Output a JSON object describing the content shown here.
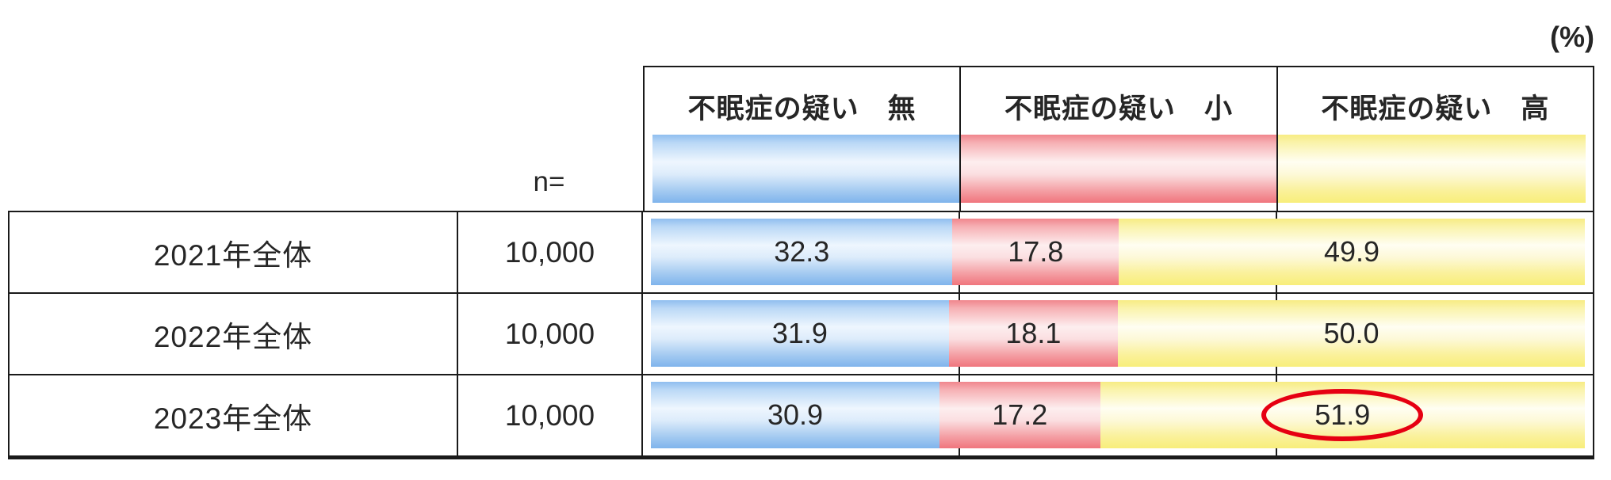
{
  "unit_label": "(%)",
  "n_label": "n=",
  "columns": [
    {
      "title": "不眠症の疑い　無",
      "color": "#a9cdf1"
    },
    {
      "title": "不眠症の疑い　小",
      "color": "#f29ba1"
    },
    {
      "title": "不眠症の疑い　高",
      "color": "#faf094"
    }
  ],
  "rows": [
    {
      "label": "2021年全体",
      "n": "10,000",
      "values": [
        "32.3",
        "17.8",
        "49.9"
      ]
    },
    {
      "label": "2022年全体",
      "n": "10,000",
      "values": [
        "31.9",
        "18.1",
        "50.0"
      ]
    },
    {
      "label": "2023年全体",
      "n": "10,000",
      "values": [
        "30.9",
        "17.2",
        "51.9"
      ]
    }
  ],
  "annotation": {
    "shape": "ellipse",
    "color": "#e60012",
    "row": "2023年全体",
    "column": "不眠症の疑い　高",
    "value": "51.9"
  },
  "chart_data": {
    "type": "bar",
    "subtype": "stacked-horizontal",
    "title": "",
    "unit": "%",
    "xlim": [
      0,
      100
    ],
    "categories": [
      "2021年全体",
      "2022年全体",
      "2023年全体"
    ],
    "n": [
      10000,
      10000,
      10000
    ],
    "series": [
      {
        "name": "不眠症の疑い　無",
        "values": [
          32.3,
          31.9,
          30.9
        ],
        "color": "#a9cdf1"
      },
      {
        "name": "不眠症の疑い　小",
        "values": [
          17.8,
          18.1,
          17.2
        ],
        "color": "#f29ba1"
      },
      {
        "name": "不眠症の疑い　高",
        "values": [
          49.9,
          50.0,
          51.9
        ],
        "color": "#faf094"
      }
    ],
    "legend_position": "top-as-column-headers",
    "grid": "column-dividers-at-thirds",
    "annotations": [
      {
        "type": "ellipse",
        "target": {
          "category": "2023年全体",
          "series": "不眠症の疑い　高",
          "value": 51.9
        },
        "color": "#e60012"
      }
    ]
  }
}
